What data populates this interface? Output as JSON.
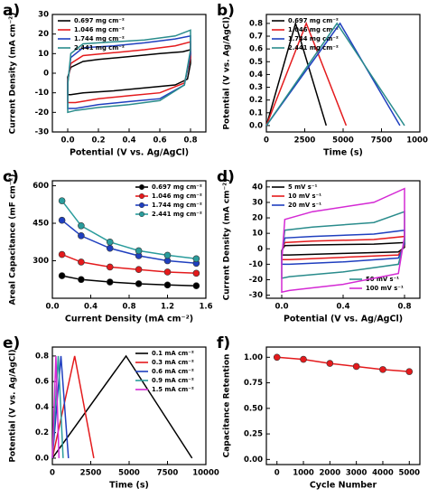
{
  "chart_data": [
    {
      "type": "line",
      "label": "a)",
      "xlabel": "Potential (V vs. Ag/AgCl)",
      "ylabel": "Current Density (mA cm⁻²)",
      "xlim": [
        -0.1,
        0.9
      ],
      "xticks": [
        {
          "value": 0,
          "label": "0.0"
        },
        0.2,
        0.4,
        0.6,
        0.8
      ],
      "ylim": [
        -30,
        30
      ],
      "yticks": [
        -30,
        -20,
        -10,
        0,
        10,
        20,
        30
      ],
      "legend": "upper left",
      "series": [
        {
          "name": "0.697 mg cm⁻²",
          "color": "#000000",
          "x": [
            0,
            0.02,
            0.1,
            0.2,
            0.4,
            0.6,
            0.75,
            0.8,
            0.8,
            0.78,
            0.7,
            0.5,
            0.3,
            0.1,
            0.02,
            0,
            0
          ],
          "values": [
            -2,
            3,
            6,
            7,
            8.5,
            10,
            11,
            12,
            5,
            -3,
            -6,
            -7.5,
            -9,
            -10,
            -11,
            -11,
            -2
          ]
        },
        {
          "name": "1.046 mg cm⁻²",
          "color": "#e41a1c",
          "x": [
            0,
            0.02,
            0.1,
            0.3,
            0.5,
            0.7,
            0.8,
            0.8,
            0.76,
            0.6,
            0.4,
            0.2,
            0.05,
            0,
            0
          ],
          "values": [
            -4,
            5,
            9,
            10.5,
            12,
            14,
            16,
            8,
            -5,
            -10,
            -11.5,
            -13,
            -15,
            -15,
            -4
          ]
        },
        {
          "name": "1.744 mg cm⁻²",
          "color": "#1f3fbf",
          "x": [
            0,
            0.02,
            0.1,
            0.3,
            0.5,
            0.7,
            0.8,
            0.8,
            0.76,
            0.6,
            0.4,
            0.2,
            0.05,
            0,
            0
          ],
          "values": [
            -5,
            8,
            13,
            14,
            15.5,
            17.5,
            19,
            10,
            -6,
            -13,
            -14.5,
            -16,
            -18,
            -18,
            -5
          ]
        },
        {
          "name": "2.441 mg cm⁻²",
          "color": "#2a8c8c",
          "x": [
            0,
            0.02,
            0.1,
            0.3,
            0.5,
            0.7,
            0.8,
            0.8,
            0.76,
            0.6,
            0.4,
            0.2,
            0.05,
            0,
            0
          ],
          "values": [
            -6,
            10,
            15,
            16,
            17,
            19,
            22,
            12,
            -6,
            -14,
            -16,
            -17.5,
            -19,
            -20,
            -6
          ]
        }
      ]
    },
    {
      "type": "line",
      "label": "b)",
      "xlabel": "Time (s)",
      "ylabel": "Potential (V vs. Ag/AgCl)",
      "xlim": [
        0,
        10000
      ],
      "xticks": [
        0,
        2500,
        5000,
        7500,
        10000
      ],
      "ylim": [
        -0.05,
        0.87
      ],
      "yticks": [
        {
          "value": 0,
          "label": "0.0"
        },
        0.1,
        0.2,
        0.3,
        0.4,
        0.5,
        0.6,
        0.7,
        0.8
      ],
      "legend": "upper left",
      "series": [
        {
          "name": "0.697 mg cm⁻²",
          "color": "#000000",
          "x": [
            0,
            1900,
            3900
          ],
          "values": [
            0,
            0.8,
            0
          ]
        },
        {
          "name": "1.046 mg cm⁻²",
          "color": "#e41a1c",
          "x": [
            0,
            2600,
            5200
          ],
          "values": [
            0,
            0.8,
            0
          ]
        },
        {
          "name": "1.744 mg cm⁻²",
          "color": "#1f3fbf",
          "x": [
            0,
            4800,
            8700
          ],
          "values": [
            0,
            0.8,
            0
          ]
        },
        {
          "name": "2.441 mg cm⁻²",
          "color": "#2a8c8c",
          "x": [
            0,
            4600,
            9000
          ],
          "values": [
            0,
            0.8,
            0
          ]
        }
      ]
    },
    {
      "type": "line",
      "label": "c)",
      "xlabel": "Current Density (mA cm⁻²)",
      "ylabel": "Areal Capacitance (mF cm⁻²)",
      "xlim": [
        0,
        1.6
      ],
      "xticks": [
        {
          "value": 0,
          "label": "0.0"
        },
        0.4,
        0.8,
        1.2,
        1.6
      ],
      "ylim": [
        150,
        620
      ],
      "yticks": [
        300,
        450,
        600
      ],
      "legend": "upper right",
      "markers": true,
      "series": [
        {
          "name": "0.697 mg cm⁻²",
          "color": "#000000",
          "x": [
            0.1,
            0.3,
            0.6,
            0.9,
            1.2,
            1.5
          ],
          "values": [
            240,
            225,
            215,
            208,
            203,
            200
          ]
        },
        {
          "name": "1.046 mg cm⁻²",
          "color": "#e41a1c",
          "x": [
            0.1,
            0.3,
            0.6,
            0.9,
            1.2,
            1.5
          ],
          "values": [
            325,
            295,
            275,
            265,
            255,
            250
          ]
        },
        {
          "name": "1.744 mg cm⁻²",
          "color": "#1f3fbf",
          "x": [
            0.1,
            0.3,
            0.6,
            0.9,
            1.2,
            1.5
          ],
          "values": [
            462,
            400,
            350,
            320,
            300,
            290
          ]
        },
        {
          "name": "2.441 mg cm⁻²",
          "color": "#2a9c9c",
          "x": [
            0.1,
            0.3,
            0.6,
            0.9,
            1.2,
            1.5
          ],
          "values": [
            540,
            440,
            375,
            340,
            322,
            308
          ]
        }
      ]
    },
    {
      "type": "line",
      "label": "d)",
      "xlabel": "Potential (V vs. Ag/AgCl)",
      "ylabel": "Current Density (mA cm⁻²)",
      "xlim": [
        -0.1,
        0.9
      ],
      "xticks": [
        {
          "value": 0,
          "label": "0.0"
        },
        0.4,
        0.8
      ],
      "ylim": [
        -32,
        44
      ],
      "yticks": [
        -30,
        -20,
        -10,
        0,
        10,
        20,
        30,
        40
      ],
      "series": [
        {
          "name": "5 mV s⁻¹",
          "color": "#000000",
          "legend": "upper left",
          "x": [
            0,
            0.02,
            0.2,
            0.6,
            0.8,
            0.8,
            0.76,
            0.4,
            0.05,
            0,
            0
          ],
          "values": [
            -1,
            2,
            2.5,
            3,
            4,
            1,
            -2,
            -3,
            -4,
            -4,
            -1
          ]
        },
        {
          "name": "10 mV s⁻¹",
          "color": "#e41a1c",
          "legend": "upper left",
          "x": [
            0,
            0.02,
            0.2,
            0.6,
            0.8,
            0.8,
            0.76,
            0.4,
            0.05,
            0,
            0
          ],
          "values": [
            -2,
            4,
            5,
            6,
            8,
            2,
            -4,
            -5.5,
            -7,
            -7,
            -2
          ]
        },
        {
          "name": "20 mV s⁻¹",
          "color": "#1f3fbf",
          "legend": "upper left",
          "x": [
            0,
            0.02,
            0.2,
            0.6,
            0.8,
            0.8,
            0.76,
            0.4,
            0.05,
            0,
            0
          ],
          "values": [
            -3,
            7,
            8,
            9.5,
            12,
            3,
            -6,
            -8.5,
            -10,
            -10,
            -3
          ]
        },
        {
          "name": "50 mV s⁻¹",
          "color": "#2a8c8c",
          "legend": "lower right",
          "x": [
            0,
            0.02,
            0.2,
            0.6,
            0.8,
            0.8,
            0.76,
            0.4,
            0.05,
            0,
            0
          ],
          "values": [
            -5,
            12,
            14,
            17,
            24,
            5,
            -10,
            -15,
            -18,
            -19,
            -5
          ]
        },
        {
          "name": "100 mV s⁻¹",
          "color": "#d42ad4",
          "legend": "lower right",
          "x": [
            0,
            0.02,
            0.2,
            0.6,
            0.8,
            0.8,
            0.76,
            0.4,
            0.05,
            0,
            0
          ],
          "values": [
            -8,
            19,
            24,
            30,
            39,
            8,
            -16,
            -23,
            -27,
            -28,
            -8
          ]
        }
      ]
    },
    {
      "type": "line",
      "label": "e)",
      "xlabel": "Time (s)",
      "ylabel": "Potential (V vs. Ag/AgCl)",
      "xlim": [
        0,
        10000
      ],
      "xticks": [
        0,
        2500,
        5000,
        7500,
        10000
      ],
      "ylim": [
        -0.05,
        0.87
      ],
      "yticks": [
        {
          "value": 0,
          "label": "0.0"
        },
        0.2,
        0.4,
        0.6,
        0.8
      ],
      "legend": "upper right",
      "series": [
        {
          "name": "0.1 mA cm⁻²",
          "color": "#000000",
          "x": [
            0,
            4800,
            9100
          ],
          "values": [
            0,
            0.8,
            0
          ]
        },
        {
          "name": "0.3 mA cm⁻²",
          "color": "#e41a1c",
          "x": [
            0,
            1450,
            2700
          ],
          "values": [
            0,
            0.8,
            0
          ]
        },
        {
          "name": "0.6 mA cm⁻²",
          "color": "#1f3fbf",
          "x": [
            0,
            560,
            1050
          ],
          "values": [
            0,
            0.8,
            0
          ]
        },
        {
          "name": "0.9 mA cm⁻²",
          "color": "#2a9c9c",
          "x": [
            0,
            380,
            700
          ],
          "values": [
            0,
            0.8,
            0
          ]
        },
        {
          "name": "1.5 mA cm⁻²",
          "color": "#d42ad4",
          "x": [
            0,
            230,
            430
          ],
          "values": [
            0,
            0.8,
            0
          ]
        }
      ]
    },
    {
      "type": "line",
      "label": "f)",
      "xlabel": "Cycle Number",
      "ylabel": "Capacitance Retention",
      "xlim": [
        -400,
        5400
      ],
      "xticks": [
        0,
        1000,
        2000,
        3000,
        4000,
        5000
      ],
      "ylim": [
        -0.05,
        1.1
      ],
      "yticks": [
        {
          "value": 0,
          "label": "0.00"
        },
        {
          "value": 0.25,
          "label": "0.25"
        },
        {
          "value": 0.5,
          "label": "0.50"
        },
        {
          "value": 0.75,
          "label": "0.75"
        },
        {
          "value": 1,
          "label": "1.00"
        }
      ],
      "markers": true,
      "series": [
        {
          "color": "#e41a1c",
          "x": [
            0,
            1000,
            2000,
            3000,
            4000,
            5000
          ],
          "values": [
            1.0,
            0.98,
            0.94,
            0.91,
            0.88,
            0.86
          ]
        }
      ]
    }
  ]
}
